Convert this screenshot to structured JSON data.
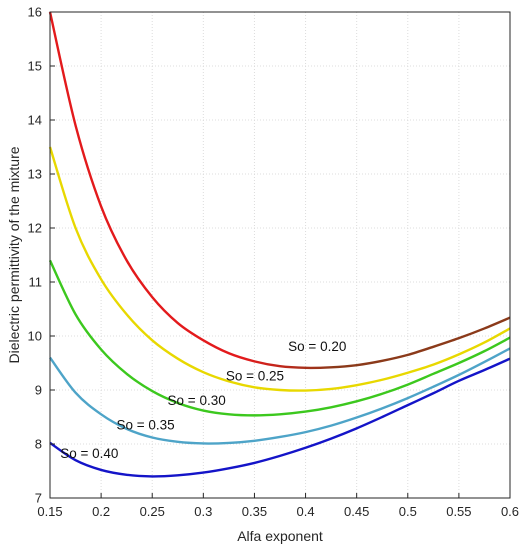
{
  "chart_data": {
    "type": "line",
    "xlabel": "Alfa exponent",
    "ylabel": "Dielectric permittivity of the mixture",
    "xlim": [
      0.15,
      0.6
    ],
    "ylim": [
      7,
      16
    ],
    "grid": true,
    "x_ticks": [
      "0.15",
      "0.2",
      "0.25",
      "0.3",
      "0.35",
      "0.4",
      "0.45",
      "0.5",
      "0.55",
      "0.6"
    ],
    "y_ticks": [
      "7",
      "8",
      "9",
      "10",
      "11",
      "12",
      "13",
      "14",
      "15",
      "16"
    ],
    "x": [
      0.15,
      0.175,
      0.2,
      0.225,
      0.25,
      0.275,
      0.3,
      0.325,
      0.35,
      0.375,
      0.4,
      0.425,
      0.45,
      0.475,
      0.5,
      0.525,
      0.55,
      0.575,
      0.6
    ],
    "series": [
      {
        "label": "So = 0.20",
        "color": "#e31a1c",
        "color_end": "#8b3a1a",
        "label_at": [
          0.383,
          9.72
        ],
        "values": [
          16.0,
          13.9,
          12.4,
          11.4,
          10.72,
          10.24,
          9.92,
          9.68,
          9.53,
          9.44,
          9.41,
          9.42,
          9.46,
          9.54,
          9.65,
          9.8,
          9.96,
          10.14,
          10.34
        ]
      },
      {
        "label": "So = 0.25",
        "color": "#e8d800",
        "label_at": [
          0.322,
          9.18
        ],
        "values": [
          13.5,
          12.0,
          11.05,
          10.4,
          9.92,
          9.58,
          9.33,
          9.16,
          9.05,
          9.0,
          8.99,
          9.02,
          9.09,
          9.19,
          9.32,
          9.47,
          9.66,
          9.88,
          10.14
        ]
      },
      {
        "label": "So = 0.30",
        "color": "#3cc81e",
        "label_at": [
          0.265,
          8.72
        ],
        "values": [
          11.4,
          10.4,
          9.75,
          9.3,
          8.98,
          8.76,
          8.62,
          8.55,
          8.53,
          8.55,
          8.6,
          8.68,
          8.79,
          8.93,
          9.1,
          9.3,
          9.5,
          9.72,
          9.97
        ]
      },
      {
        "label": "So = 0.35",
        "color": "#4ea4c8",
        "label_at": [
          0.215,
          8.27
        ],
        "values": [
          9.6,
          8.95,
          8.55,
          8.28,
          8.12,
          8.04,
          8.01,
          8.02,
          8.06,
          8.13,
          8.22,
          8.34,
          8.49,
          8.66,
          8.85,
          9.06,
          9.28,
          9.52,
          9.77
        ]
      },
      {
        "label": "So = 0.40",
        "color": "#1414c8",
        "label_at": [
          0.16,
          7.74
        ],
        "values": [
          8.02,
          7.7,
          7.52,
          7.43,
          7.4,
          7.42,
          7.47,
          7.55,
          7.65,
          7.78,
          7.93,
          8.1,
          8.29,
          8.5,
          8.72,
          8.94,
          9.17,
          9.37,
          9.58
        ]
      }
    ]
  }
}
